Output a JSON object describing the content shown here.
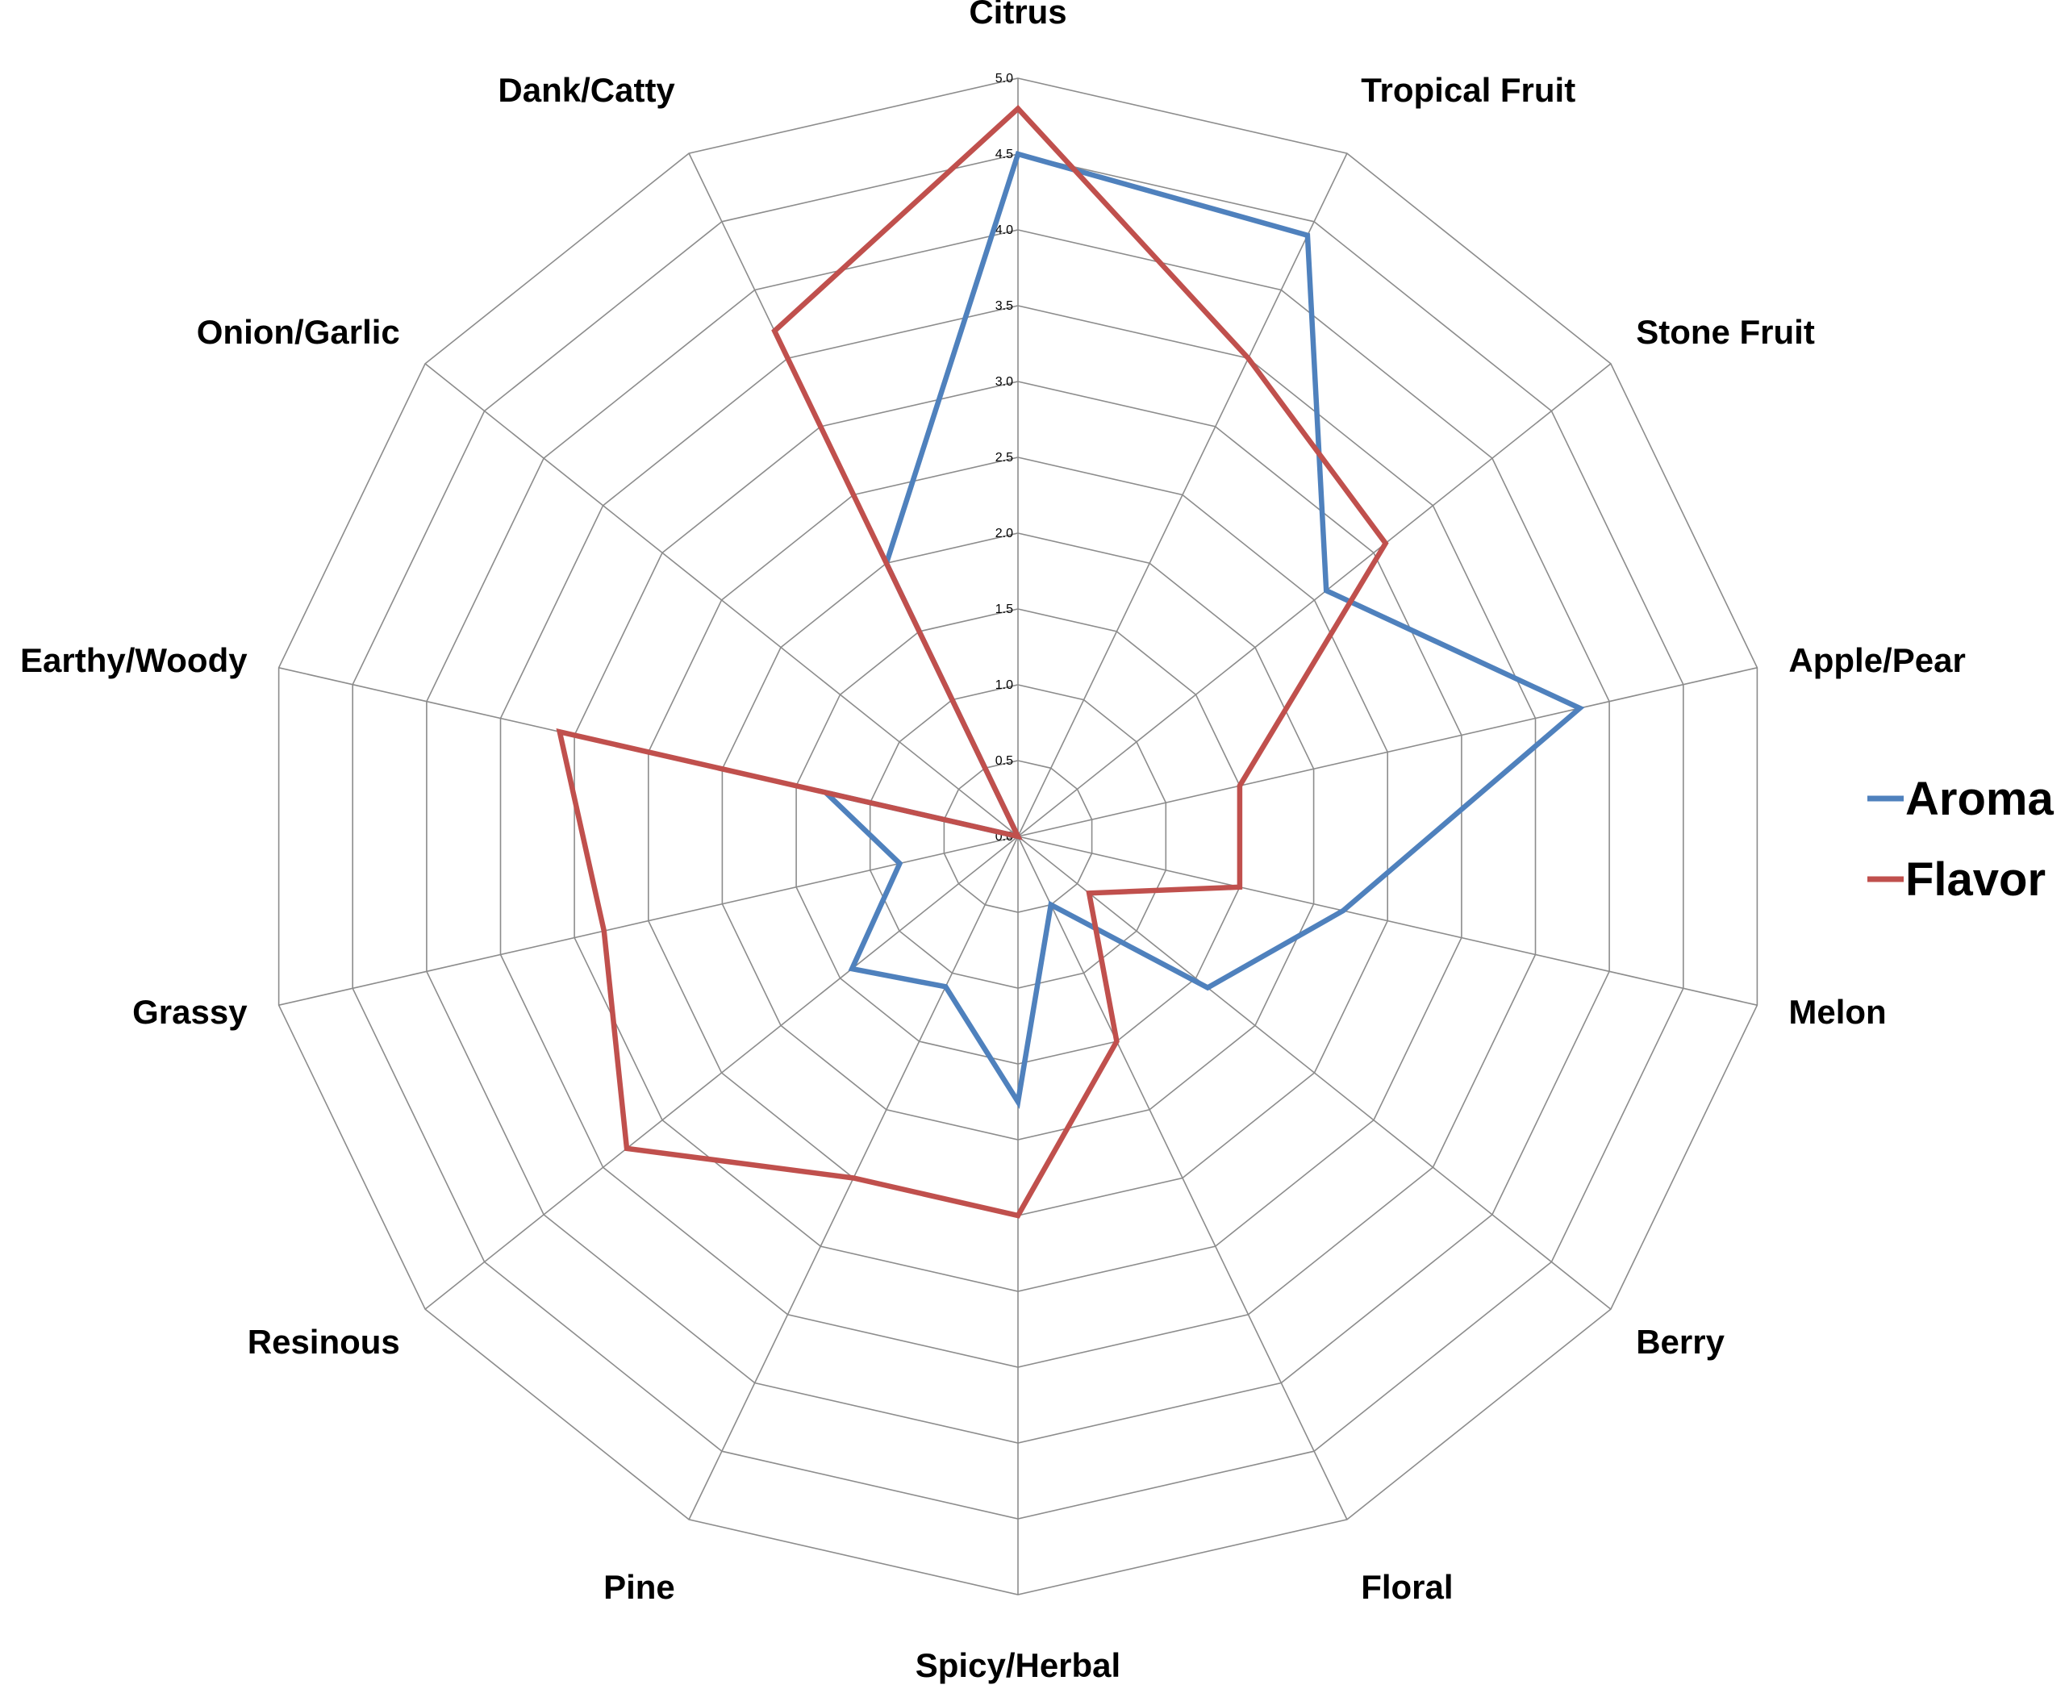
{
  "chart_data": {
    "type": "radar",
    "categories": [
      "Citrus",
      "Tropical Fruit",
      "Stone Fruit",
      "Apple/Pear",
      "Melon",
      "Berry",
      "Floral",
      "Spicy/Herbal",
      "Pine",
      "Resinous",
      "Grassy",
      "Earthy/Woody",
      "Onion/Garlic",
      "Dank/Catty"
    ],
    "series": [
      {
        "name": "Aroma",
        "color": "#4f81bd",
        "values": [
          4.5,
          4.4,
          2.6,
          3.8,
          2.2,
          1.6,
          0.5,
          1.75,
          1.1,
          1.4,
          0.8,
          1.3,
          0,
          2.0
        ]
      },
      {
        "name": "Flavor",
        "color": "#c0504d",
        "values": [
          4.8,
          3.5,
          3.1,
          1.5,
          1.5,
          0.6,
          1.5,
          2.5,
          2.5,
          3.3,
          2.8,
          3.1,
          0,
          3.7
        ]
      }
    ],
    "rlim": [
      0,
      5
    ],
    "ticks": [
      "0.0",
      "0.5",
      "1.0",
      "1.5",
      "2.0",
      "2.5",
      "3.0",
      "3.5",
      "4.0",
      "4.5",
      "5.0"
    ],
    "grid": true,
    "legend": "right"
  }
}
